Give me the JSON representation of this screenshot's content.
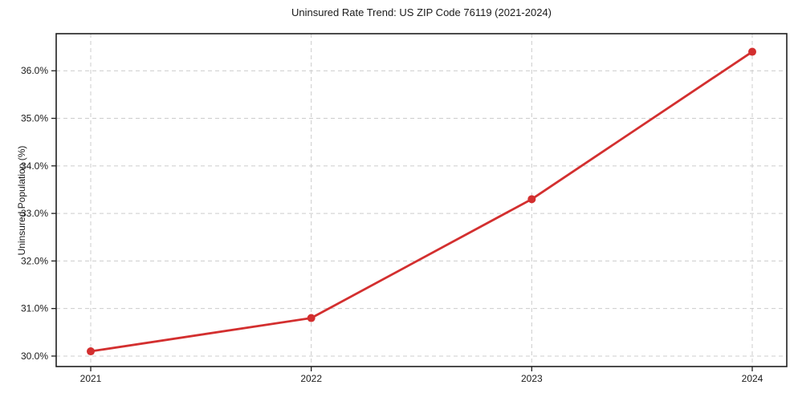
{
  "chart_data": {
    "type": "line",
    "title": "Uninsured Rate Trend: US ZIP Code 76119 (2021-2024)",
    "xlabel": "",
    "ylabel": "Uninsured Population (%)",
    "categories": [
      "2021",
      "2022",
      "2023",
      "2024"
    ],
    "series": [
      {
        "name": "Uninsured Population (%)",
        "values": [
          30.1,
          30.8,
          33.3,
          36.4
        ],
        "color": "#d32f2f",
        "marker": "circle",
        "line_width": 2.8,
        "marker_radius": 5
      }
    ],
    "y_ticks": [
      30.0,
      31.0,
      32.0,
      33.0,
      34.0,
      35.0,
      36.0
    ],
    "y_tick_labels": [
      "30.0%",
      "31.0%",
      "32.0%",
      "33.0%",
      "34.0%",
      "35.0%",
      "36.0%"
    ],
    "ylim": [
      29.78,
      36.78
    ],
    "grid": true,
    "grid_line_style": "dashed",
    "legend_position": "none",
    "colors": {
      "background": "#ffffff",
      "grid": "#cccccc",
      "spine": "#1f1f1f",
      "text": "#1a1a1a"
    }
  }
}
